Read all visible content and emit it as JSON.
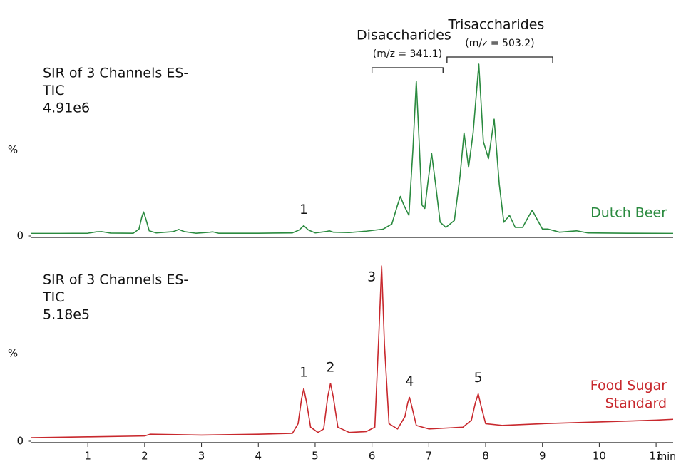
{
  "chart_data": [
    {
      "type": "line",
      "info": [
        "SIR of 3 Channels ES-",
        "TIC",
        "4.91e6"
      ],
      "ylabel": "%",
      "xlim": [
        0,
        11.3
      ],
      "ylim": [
        0,
        100
      ],
      "yticks": [
        0
      ],
      "x": [
        0,
        0.5,
        1.0,
        1.15,
        1.25,
        1.4,
        1.8,
        1.9,
        1.95,
        1.98,
        2.02,
        2.08,
        2.2,
        2.5,
        2.6,
        2.7,
        2.9,
        3.15,
        3.2,
        3.3,
        4.0,
        4.6,
        4.72,
        4.8,
        4.88,
        5.0,
        5.2,
        5.25,
        5.32,
        5.6,
        5.9,
        6.2,
        6.35,
        6.45,
        6.5,
        6.56,
        6.65,
        6.72,
        6.78,
        6.83,
        6.88,
        6.93,
        6.98,
        7.05,
        7.12,
        7.2,
        7.3,
        7.45,
        7.55,
        7.62,
        7.7,
        7.78,
        7.88,
        7.96,
        8.05,
        8.15,
        8.24,
        8.32,
        8.42,
        8.52,
        8.65,
        8.75,
        8.82,
        8.9,
        9.0,
        9.1,
        9.3,
        9.6,
        9.8,
        10.5,
        11.3
      ],
      "series": [
        {
          "name": "Dutch Beer",
          "color": "#2a8a3f",
          "values": [
            1.5,
            1.5,
            1.6,
            2.4,
            2.5,
            1.7,
            1.6,
            4,
            11,
            14,
            10,
            3,
            1.8,
            2.5,
            3.8,
            2.5,
            1.6,
            2.2,
            2.4,
            1.6,
            1.6,
            1.8,
            3.5,
            6,
            3.5,
            1.8,
            2.6,
            3,
            2.2,
            2,
            2.8,
            4,
            7,
            18,
            23,
            18,
            12,
            50,
            90,
            55,
            18,
            16,
            30,
            48,
            30,
            8,
            5,
            9,
            35,
            60,
            40,
            60,
            100,
            55,
            45,
            68,
            30,
            8,
            12,
            5,
            5,
            11,
            15,
            10,
            4,
            4,
            2.2,
            3,
            1.8,
            1.6,
            1.5
          ]
        }
      ],
      "annotations": [
        {
          "text": "1",
          "x": 4.8
        }
      ],
      "brackets": [
        {
          "label": "Disaccharides",
          "sublabel": "(m/z = 341.1)",
          "x": [
            6.0,
            7.25
          ]
        },
        {
          "label": "Trisaccharides",
          "sublabel": "(m/z = 503.2)",
          "x": [
            7.32,
            9.18
          ]
        }
      ]
    },
    {
      "type": "line",
      "info": [
        "SIR of 3 Channels ES-",
        "TIC",
        "5.18e5"
      ],
      "ylabel": "%",
      "xlabel": "min",
      "xlim": [
        0,
        11.3
      ],
      "ylim": [
        0,
        100
      ],
      "yticks": [
        0
      ],
      "xticks": [
        1,
        2,
        3,
        4,
        5,
        6,
        7,
        8,
        9,
        10,
        11
      ],
      "x": [
        0,
        1,
        2,
        2.1,
        3,
        4,
        4.6,
        4.7,
        4.76,
        4.8,
        4.85,
        4.92,
        5.05,
        5.15,
        5.22,
        5.27,
        5.32,
        5.4,
        5.6,
        5.9,
        6.05,
        6.12,
        6.17,
        6.22,
        6.3,
        6.45,
        6.58,
        6.63,
        6.66,
        6.7,
        6.78,
        7.0,
        7.6,
        7.75,
        7.82,
        7.87,
        7.92,
        8.0,
        8.3,
        9,
        10,
        11,
        11.3
      ],
      "series": [
        {
          "name": "Food Sugar Standard",
          "color": "#c8282d",
          "values": [
            2,
            2.5,
            3,
            4,
            3.5,
            4,
            4.5,
            10,
            24,
            30,
            22,
            8,
            5,
            7,
            25,
            33,
            25,
            8,
            5,
            5.5,
            8,
            60,
            100,
            55,
            10,
            7,
            14,
            22,
            25,
            20,
            9,
            7,
            8,
            12,
            22,
            27,
            20,
            10,
            9,
            10,
            11,
            12,
            12.5
          ]
        }
      ],
      "annotations": [
        {
          "text": "1",
          "x": 4.8
        },
        {
          "text": "2",
          "x": 5.27
        },
        {
          "text": "3",
          "x": 6.17
        },
        {
          "text": "4",
          "x": 6.66
        },
        {
          "text": "5",
          "x": 7.87
        }
      ]
    }
  ]
}
